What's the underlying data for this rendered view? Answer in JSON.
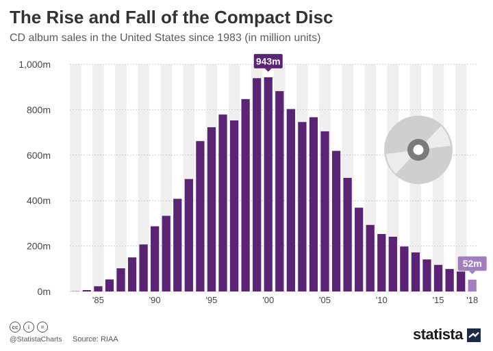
{
  "header": {
    "title": "The Rise and Fall of the Compact Disc",
    "subtitle": "CD album sales in the United States since 1983 (in million units)"
  },
  "chart_data": {
    "type": "bar",
    "title": "The Rise and Fall of the Compact Disc",
    "subtitle": "CD album sales in the United States since 1983 (in million units)",
    "xlabel": "",
    "ylabel": "",
    "ylim": [
      0,
      1000
    ],
    "y_ticks": [
      {
        "value": 0,
        "label": "0m"
      },
      {
        "value": 200,
        "label": "200m"
      },
      {
        "value": 400,
        "label": "400m"
      },
      {
        "value": 600,
        "label": "600m"
      },
      {
        "value": 800,
        "label": "800m"
      },
      {
        "value": 1000,
        "label": "1,000m"
      }
    ],
    "categories": [
      1983,
      1984,
      1985,
      1986,
      1987,
      1988,
      1989,
      1990,
      1991,
      1992,
      1993,
      1994,
      1995,
      1996,
      1997,
      1998,
      1999,
      2000,
      2001,
      2002,
      2003,
      2004,
      2005,
      2006,
      2007,
      2008,
      2009,
      2010,
      2011,
      2012,
      2013,
      2014,
      2015,
      2016,
      2017,
      2018
    ],
    "values": [
      1,
      6,
      23,
      53,
      102,
      150,
      207,
      287,
      333,
      408,
      495,
      662,
      723,
      779,
      753,
      847,
      939,
      943,
      882,
      803,
      746,
      767,
      705,
      619,
      500,
      369,
      293,
      253,
      241,
      198,
      172,
      141,
      117,
      99,
      88,
      52
    ],
    "x_ticks": [
      {
        "year": 1985,
        "label": "'85"
      },
      {
        "year": 1990,
        "label": "'90"
      },
      {
        "year": 1995,
        "label": "'95"
      },
      {
        "year": 2000,
        "label": "'00"
      },
      {
        "year": 2005,
        "label": "'05"
      },
      {
        "year": 2010,
        "label": "'10"
      },
      {
        "year": 2015,
        "label": "'15"
      },
      {
        "year": 2018,
        "label": "'18"
      }
    ],
    "callouts": [
      {
        "year": 2000,
        "label": "943m"
      },
      {
        "year": 2018,
        "label": "52m"
      }
    ],
    "highlight_year": 2018,
    "colors": {
      "bar": "#5a2374",
      "bar_highlight": "#a37ebf",
      "band": "#efefef",
      "grid": "#cccccc",
      "callout": "#5a2374",
      "callout_highlight": "#a37ebf"
    }
  },
  "footer": {
    "handle": "@StatistaCharts",
    "source": "Source: RIAA",
    "brand": "statista",
    "icons": [
      "cc-icon",
      "by-icon",
      "nd-icon",
      "statista-logo-icon"
    ]
  }
}
